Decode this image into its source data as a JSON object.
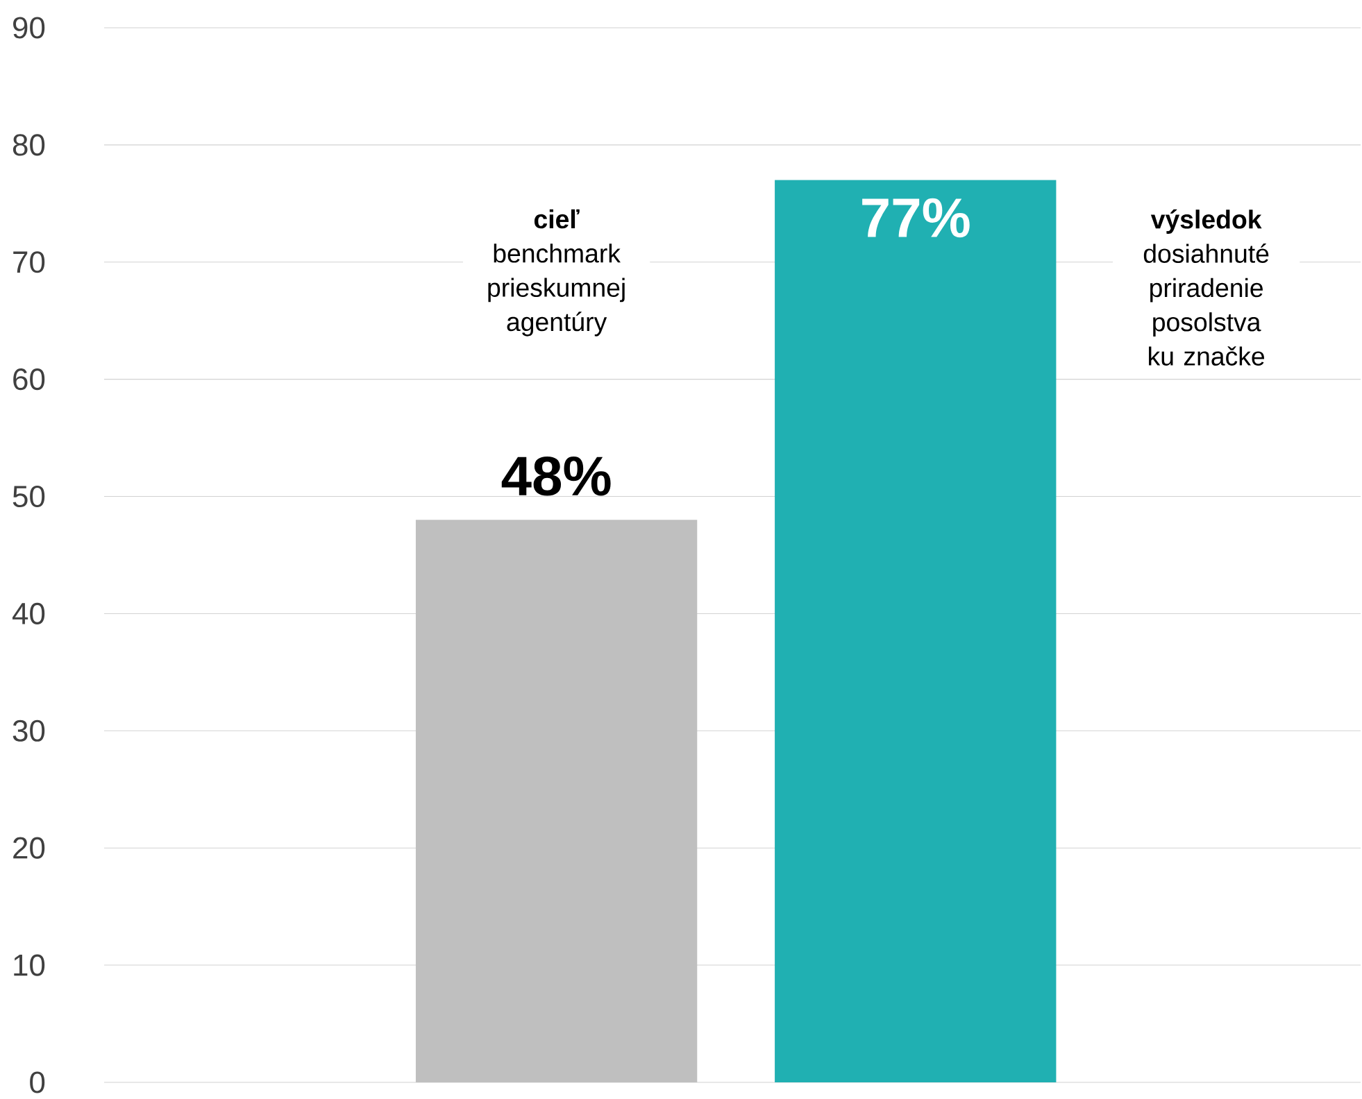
{
  "chart_data": {
    "type": "bar",
    "categories": [
      null,
      null
    ],
    "values": [
      48,
      77
    ],
    "colors": [
      "#bfbfbf",
      "#20b0b2"
    ],
    "value_labels": [
      "48%",
      "77%"
    ],
    "ylim": [
      0,
      90
    ],
    "yticks": [
      0,
      10,
      20,
      30,
      40,
      50,
      60,
      70,
      80,
      90
    ],
    "grid": "y",
    "annotations": [
      "**cieľ** benchmark prieskumnej agentúry",
      "**výsledok** dosiahnuté priradenie posolstva ku značke"
    ]
  }
}
